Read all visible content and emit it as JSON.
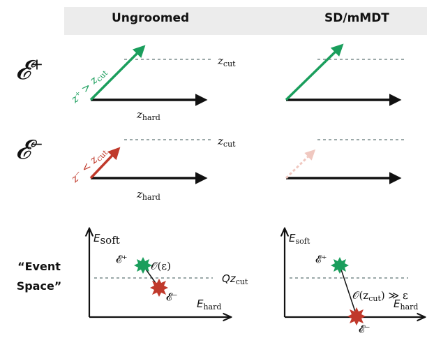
{
  "headers": {
    "ungroomed": "Ungroomed",
    "groomed": "SD/mMDT"
  },
  "rows": {
    "plus": {
      "symbol": "𝓔",
      "sign": "+"
    },
    "minus": {
      "symbol": "𝓔",
      "sign": "−"
    }
  },
  "labels": {
    "zcut": "z",
    "zcut_sub": "cut",
    "zhard": "z",
    "zhard_sub": "hard",
    "plus_cond": "z⁺ > z",
    "plus_cond_sub": "cut",
    "minus_cond": "z⁻ < z",
    "minus_cond_sub": "cut"
  },
  "event_space": {
    "title_line1": "“Event",
    "title_line2": "Space”",
    "esoft": "E",
    "esoft_sub": "soft",
    "ehard": "E",
    "ehard_sub": "hard",
    "qzcut": "Qz",
    "qzcut_sub": "cut",
    "eplus": "𝓔⁺",
    "eminus": "𝓔⁻",
    "order_eps": "𝒪(ε)",
    "order_zcut": "𝒪(z",
    "order_zcut_sub": "cut",
    "order_zcut_tail": ") ≫ ε"
  },
  "colors": {
    "green": "#1a9e5c",
    "red": "#c0392b",
    "faded_red": "#f0c8c0",
    "dashed": "#7a8c8c"
  }
}
